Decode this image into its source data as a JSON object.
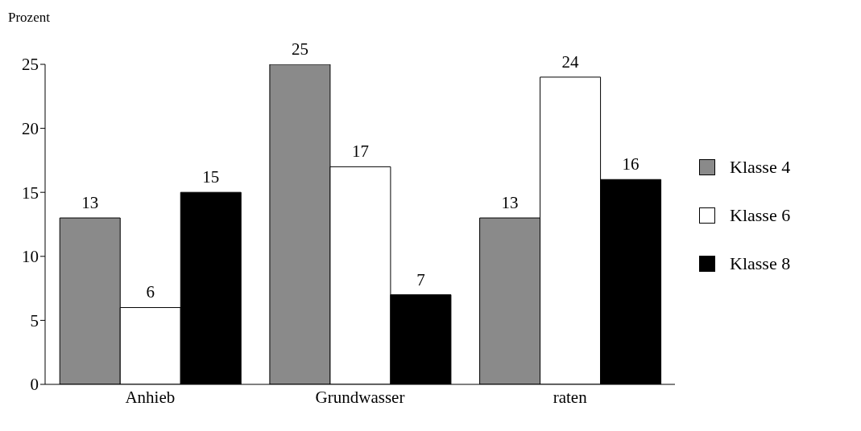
{
  "chart_data": {
    "type": "bar",
    "ylabel": "Prozent",
    "categories": [
      "Anhieb",
      "Grundwasser",
      "raten"
    ],
    "series": [
      {
        "name": "Klasse 4",
        "color": "#8a8a8a",
        "values": [
          13,
          25,
          13
        ]
      },
      {
        "name": "Klasse 6",
        "color": "#ffffff",
        "values": [
          6,
          17,
          24
        ]
      },
      {
        "name": "Klasse 8",
        "color": "#000000",
        "values": [
          15,
          7,
          16
        ]
      }
    ],
    "ylim": [
      0,
      25
    ],
    "yticks": [
      0,
      5,
      10,
      15,
      20,
      25
    ],
    "grid": false,
    "legend": "right",
    "data_labels": true
  }
}
